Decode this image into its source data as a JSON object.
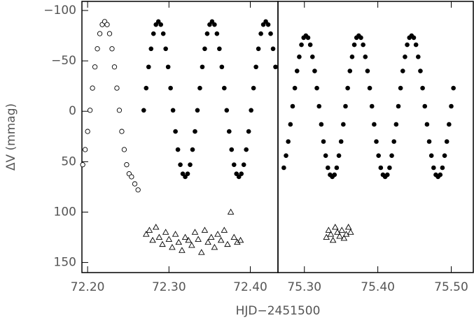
{
  "chart_data": [
    {
      "type": "scatter",
      "y_label": "ΔV (mmag)",
      "x_label": "HJD−2451500",
      "xlim": [
        72.193,
        72.434
      ],
      "ylim": [
        160,
        -109
      ],
      "xticks": [
        {
          "value": 72.2,
          "label": "72.20"
        },
        {
          "value": 72.3,
          "label": "72.30"
        },
        {
          "value": 72.4,
          "label": "72.40"
        }
      ],
      "yticks": [
        {
          "value": -100,
          "label": "−100"
        },
        {
          "value": -50,
          "label": "−50"
        },
        0,
        50,
        100,
        150
      ],
      "series": [
        {
          "marker": "filled",
          "color": "#000000",
          "x": [
            72.269,
            72.272,
            72.275,
            72.278,
            72.281,
            72.284,
            72.287,
            72.29,
            72.293,
            72.296,
            72.299,
            72.302,
            72.305,
            72.308,
            72.311,
            72.314,
            72.317,
            72.32,
            72.323,
            72.326,
            72.329,
            72.332,
            72.335,
            72.338,
            72.341,
            72.344,
            72.347,
            72.35,
            72.353,
            72.356,
            72.359,
            72.362,
            72.365,
            72.368,
            72.371,
            72.374,
            72.377,
            72.38,
            72.383,
            72.386,
            72.389,
            72.392,
            72.395,
            72.398,
            72.401,
            72.404,
            72.407,
            72.41,
            72.413,
            72.416,
            72.419,
            72.422,
            72.425,
            72.428,
            72.431
          ],
          "values": [
            -1,
            -23,
            -44,
            -62,
            -77,
            -86,
            -89,
            -86,
            -77,
            -62,
            -44,
            -23,
            -1,
            20,
            38,
            53,
            62,
            65,
            62,
            53,
            38,
            20,
            -1,
            -23,
            -44,
            -62,
            -77,
            -86,
            -89,
            -86,
            -77,
            -62,
            -44,
            -23,
            -1,
            20,
            38,
            53,
            62,
            65,
            62,
            53,
            38,
            20,
            -1,
            -23,
            -44,
            -62,
            -77,
            -86,
            -89,
            -86,
            -77,
            -62,
            -44
          ]
        },
        {
          "marker": "open",
          "color": "#000000",
          "x": [
            72.194,
            72.197,
            72.2,
            72.203,
            72.206,
            72.209,
            72.212,
            72.215,
            72.218,
            72.221,
            72.224,
            72.227,
            72.23,
            72.233,
            72.236,
            72.239,
            72.242,
            72.245,
            72.248,
            72.251,
            72.254,
            72.258,
            72.262
          ],
          "values": [
            53,
            38,
            20,
            -1,
            -23,
            -44,
            -62,
            -77,
            -86,
            -89,
            -86,
            -77,
            -62,
            -44,
            -23,
            -1,
            20,
            38,
            53,
            62,
            65,
            72,
            78
          ]
        },
        {
          "marker": "triangle",
          "color": "#000000",
          "x": [
            72.272,
            72.276,
            72.28,
            72.284,
            72.288,
            72.292,
            72.296,
            72.3,
            72.304,
            72.308,
            72.312,
            72.316,
            72.32,
            72.324,
            72.328,
            72.332,
            72.336,
            72.34,
            72.344,
            72.348,
            72.352,
            72.356,
            72.36,
            72.364,
            72.368,
            72.372,
            72.376,
            72.38,
            72.384,
            72.388
          ],
          "values": [
            122,
            118,
            128,
            115,
            125,
            132,
            120,
            127,
            135,
            122,
            130,
            138,
            125,
            128,
            133,
            120,
            127,
            140,
            118,
            130,
            125,
            135,
            122,
            128,
            118,
            132,
            100,
            125,
            130,
            128
          ]
        }
      ]
    },
    {
      "type": "scatter",
      "xlim": [
        75.264,
        75.531
      ],
      "ylim": [
        160,
        -109
      ],
      "xticks": [
        {
          "value": 75.3,
          "label": "75.30"
        },
        {
          "value": 75.4,
          "label": "75.40"
        },
        {
          "value": 75.5,
          "label": "75.50"
        }
      ],
      "series": [
        {
          "marker": "filled",
          "color": "#000000",
          "x": [
            75.272,
            75.275,
            75.278,
            75.281,
            75.284,
            75.287,
            75.29,
            75.293,
            75.296,
            75.299,
            75.302,
            75.305,
            75.308,
            75.311,
            75.314,
            75.317,
            75.32,
            75.323,
            75.326,
            75.329,
            75.332,
            75.335,
            75.338,
            75.341,
            75.344,
            75.347,
            75.35,
            75.353,
            75.356,
            75.359,
            75.362,
            75.365,
            75.368,
            75.371,
            75.374,
            75.377,
            75.38,
            75.383,
            75.386,
            75.389,
            75.392,
            75.395,
            75.398,
            75.401,
            75.404,
            75.407,
            75.41,
            75.413,
            75.416,
            75.419,
            75.422,
            75.425,
            75.428,
            75.431,
            75.434,
            75.437,
            75.44,
            75.443,
            75.446,
            75.449,
            75.452,
            75.455,
            75.458,
            75.461,
            75.464,
            75.467,
            75.47,
            75.473,
            75.476,
            75.479,
            75.482,
            75.485,
            75.488,
            75.491,
            75.494,
            75.497,
            75.5,
            75.503
          ],
          "values": [
            56,
            44,
            30,
            13,
            -5,
            -23,
            -40,
            -54,
            -66,
            -73,
            -75,
            -73,
            -66,
            -54,
            -40,
            -23,
            -5,
            13,
            30,
            44,
            56,
            63,
            65,
            63,
            56,
            44,
            30,
            13,
            -5,
            -23,
            -40,
            -54,
            -66,
            -73,
            -75,
            -73,
            -66,
            -54,
            -40,
            -23,
            -5,
            13,
            30,
            44,
            56,
            63,
            65,
            63,
            56,
            44,
            30,
            13,
            -5,
            -23,
            -40,
            -54,
            -66,
            -73,
            -75,
            -73,
            -66,
            -54,
            -40,
            -23,
            -5,
            13,
            30,
            44,
            56,
            63,
            65,
            63,
            56,
            44,
            30,
            13,
            -5,
            -23
          ]
        },
        {
          "marker": "triangle",
          "color": "#000000",
          "x": [
            75.33,
            75.333,
            75.336,
            75.339,
            75.342,
            75.345,
            75.348,
            75.351,
            75.354,
            75.357,
            75.36,
            75.363
          ],
          "values": [
            125,
            118,
            122,
            128,
            115,
            120,
            124,
            118,
            126,
            122,
            115,
            120
          ]
        }
      ]
    }
  ]
}
